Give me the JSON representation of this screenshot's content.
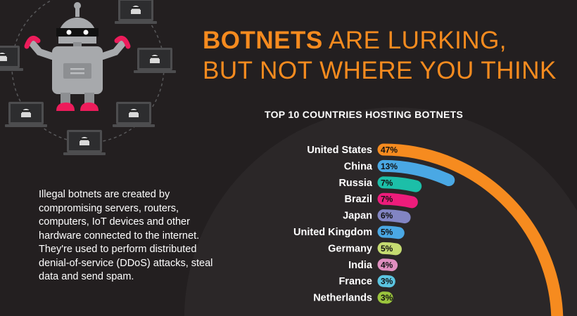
{
  "headline": {
    "bold": "BOTNETS",
    "rest_line1": "ARE LURKING,",
    "line2": "BUT NOT WHERE YOU THINK"
  },
  "description": "Illegal botnets are created by compromising servers, routers, computers, IoT devices and other hardware connected to the internet. They're used to perform distributed denial-of-service (DDoS) attacks, steal data and send spam.",
  "colors": {
    "background": "#231f20",
    "accent": "#f68b1f",
    "robot_body": "#a7a9ac",
    "robot_feet": "#ed1c5b",
    "laptop": "#4d4d4f"
  },
  "chart_data": {
    "type": "bar",
    "title": "TOP 10 COUNTRIES HOSTING BOTNETS",
    "categories": [
      "United States",
      "China",
      "Russia",
      "Brazil",
      "Japan",
      "United Kingdom",
      "Germany",
      "India",
      "France",
      "Netherlands"
    ],
    "values": [
      47,
      13,
      7,
      7,
      6,
      5,
      5,
      4,
      3,
      3
    ],
    "value_labels": [
      "47%",
      "13%",
      "7%",
      "7%",
      "6%",
      "5%",
      "5%",
      "4%",
      "3%",
      "3%"
    ],
    "unit": "%",
    "colors": [
      "#f68b1f",
      "#4aa8e4",
      "#1cbfa8",
      "#ed1c7b",
      "#8285c3",
      "#4aa8e4",
      "#c5db71",
      "#e08fc0",
      "#5bc4e0",
      "#9bc53d"
    ]
  }
}
